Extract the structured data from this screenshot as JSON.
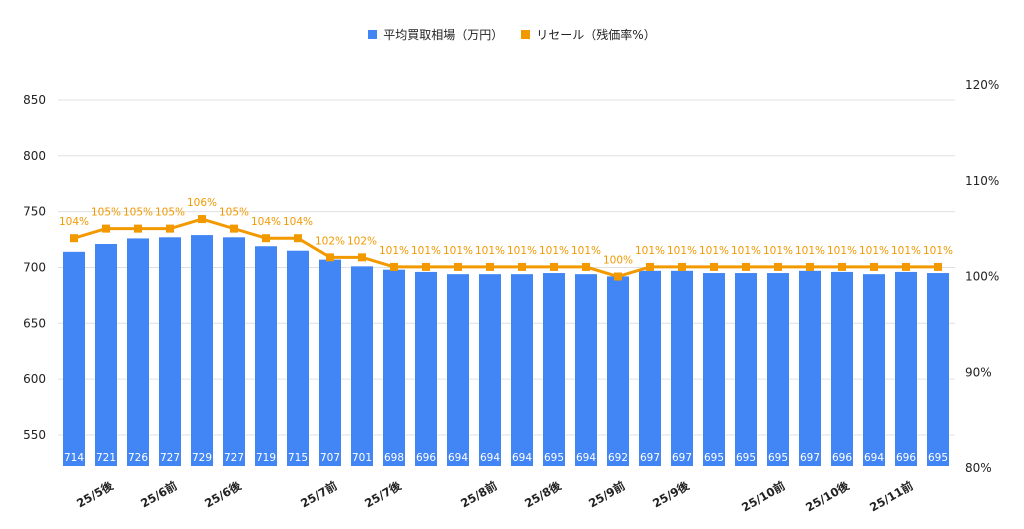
{
  "chart_data": {
    "type": "bar+line",
    "categories": [
      "",
      "25/5後",
      "",
      "25/6前",
      "",
      "25/6後",
      "",
      "",
      "25/7前",
      "",
      "25/7後",
      "",
      "",
      "25/8前",
      "",
      "25/8後",
      "",
      "25/9前",
      "",
      "25/9後",
      "",
      "",
      "25/10前",
      "",
      "25/10後",
      "",
      "25/11前",
      ""
    ],
    "series": [
      {
        "name": "平均買取相場（万円）",
        "type": "bar",
        "axis": "left",
        "color": "#4285f4",
        "values": [
          714,
          721,
          726,
          727,
          729,
          727,
          719,
          715,
          707,
          701,
          698,
          696,
          694,
          694,
          694,
          695,
          694,
          692,
          697,
          697,
          695,
          695,
          695,
          697,
          696,
          694,
          696,
          695
        ]
      },
      {
        "name": "リセール（残価率%）",
        "type": "line",
        "axis": "right",
        "color": "#f29900",
        "values": [
          104,
          105,
          105,
          105,
          106,
          105,
          104,
          104,
          102,
          102,
          101,
          101,
          101,
          101,
          101,
          101,
          101,
          100,
          101,
          101,
          101,
          101,
          101,
          101,
          101,
          101,
          101,
          101
        ]
      }
    ],
    "left_axis": {
      "ticks": [
        550,
        600,
        650,
        700,
        750,
        800,
        850
      ],
      "range": [
        520.4,
        863.4
      ]
    },
    "right_axis": {
      "ticks": [
        "80%",
        "90%",
        "100%",
        "110%",
        "120%"
      ],
      "tick_values": [
        80,
        90,
        100,
        110,
        120
      ],
      "range": [
        80,
        120
      ]
    },
    "grid": true,
    "legend_position": "top"
  }
}
